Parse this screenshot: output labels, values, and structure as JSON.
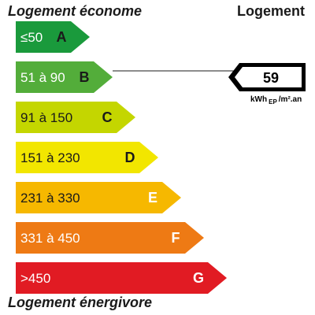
{
  "header": {
    "left_title": "Logement économe",
    "right_title": "Logement",
    "bottom_title": "Logement énergivore"
  },
  "chart_data": {
    "type": "bar",
    "categories": [
      "A",
      "B",
      "C",
      "D",
      "E",
      "F",
      "G"
    ],
    "classes": [
      {
        "letter": "A",
        "range": "≤50",
        "color": "#1a9a3c",
        "text_color": "#ffffff",
        "letter_color": "#1a1a1a"
      },
      {
        "letter": "B",
        "range": "51 à 90",
        "color": "#53ad3a",
        "text_color": "#ffffff",
        "letter_color": "#1a1a1a"
      },
      {
        "letter": "C",
        "range": "91 à 150",
        "color": "#c4d600",
        "text_color": "#1a1a1a",
        "letter_color": "#1a1a1a"
      },
      {
        "letter": "D",
        "range": "151 à 230",
        "color": "#f2e600",
        "text_color": "#1a1a1a",
        "letter_color": "#1a1a1a"
      },
      {
        "letter": "E",
        "range": "231 à 330",
        "color": "#f6b800",
        "text_color": "#1a1a1a",
        "letter_color": "#ffffff"
      },
      {
        "letter": "F",
        "range": "331 à 450",
        "color": "#ee7a14",
        "text_color": "#ffffff",
        "letter_color": "#ffffff"
      },
      {
        "letter": "G",
        "range": ">450",
        "color": "#e11b23",
        "text_color": "#ffffff",
        "letter_color": "#ffffff"
      }
    ],
    "indicator": {
      "value": "59",
      "class": "B",
      "unit_main": "kWh",
      "unit_sub": "EP",
      "unit_tail": "/m².an"
    }
  }
}
